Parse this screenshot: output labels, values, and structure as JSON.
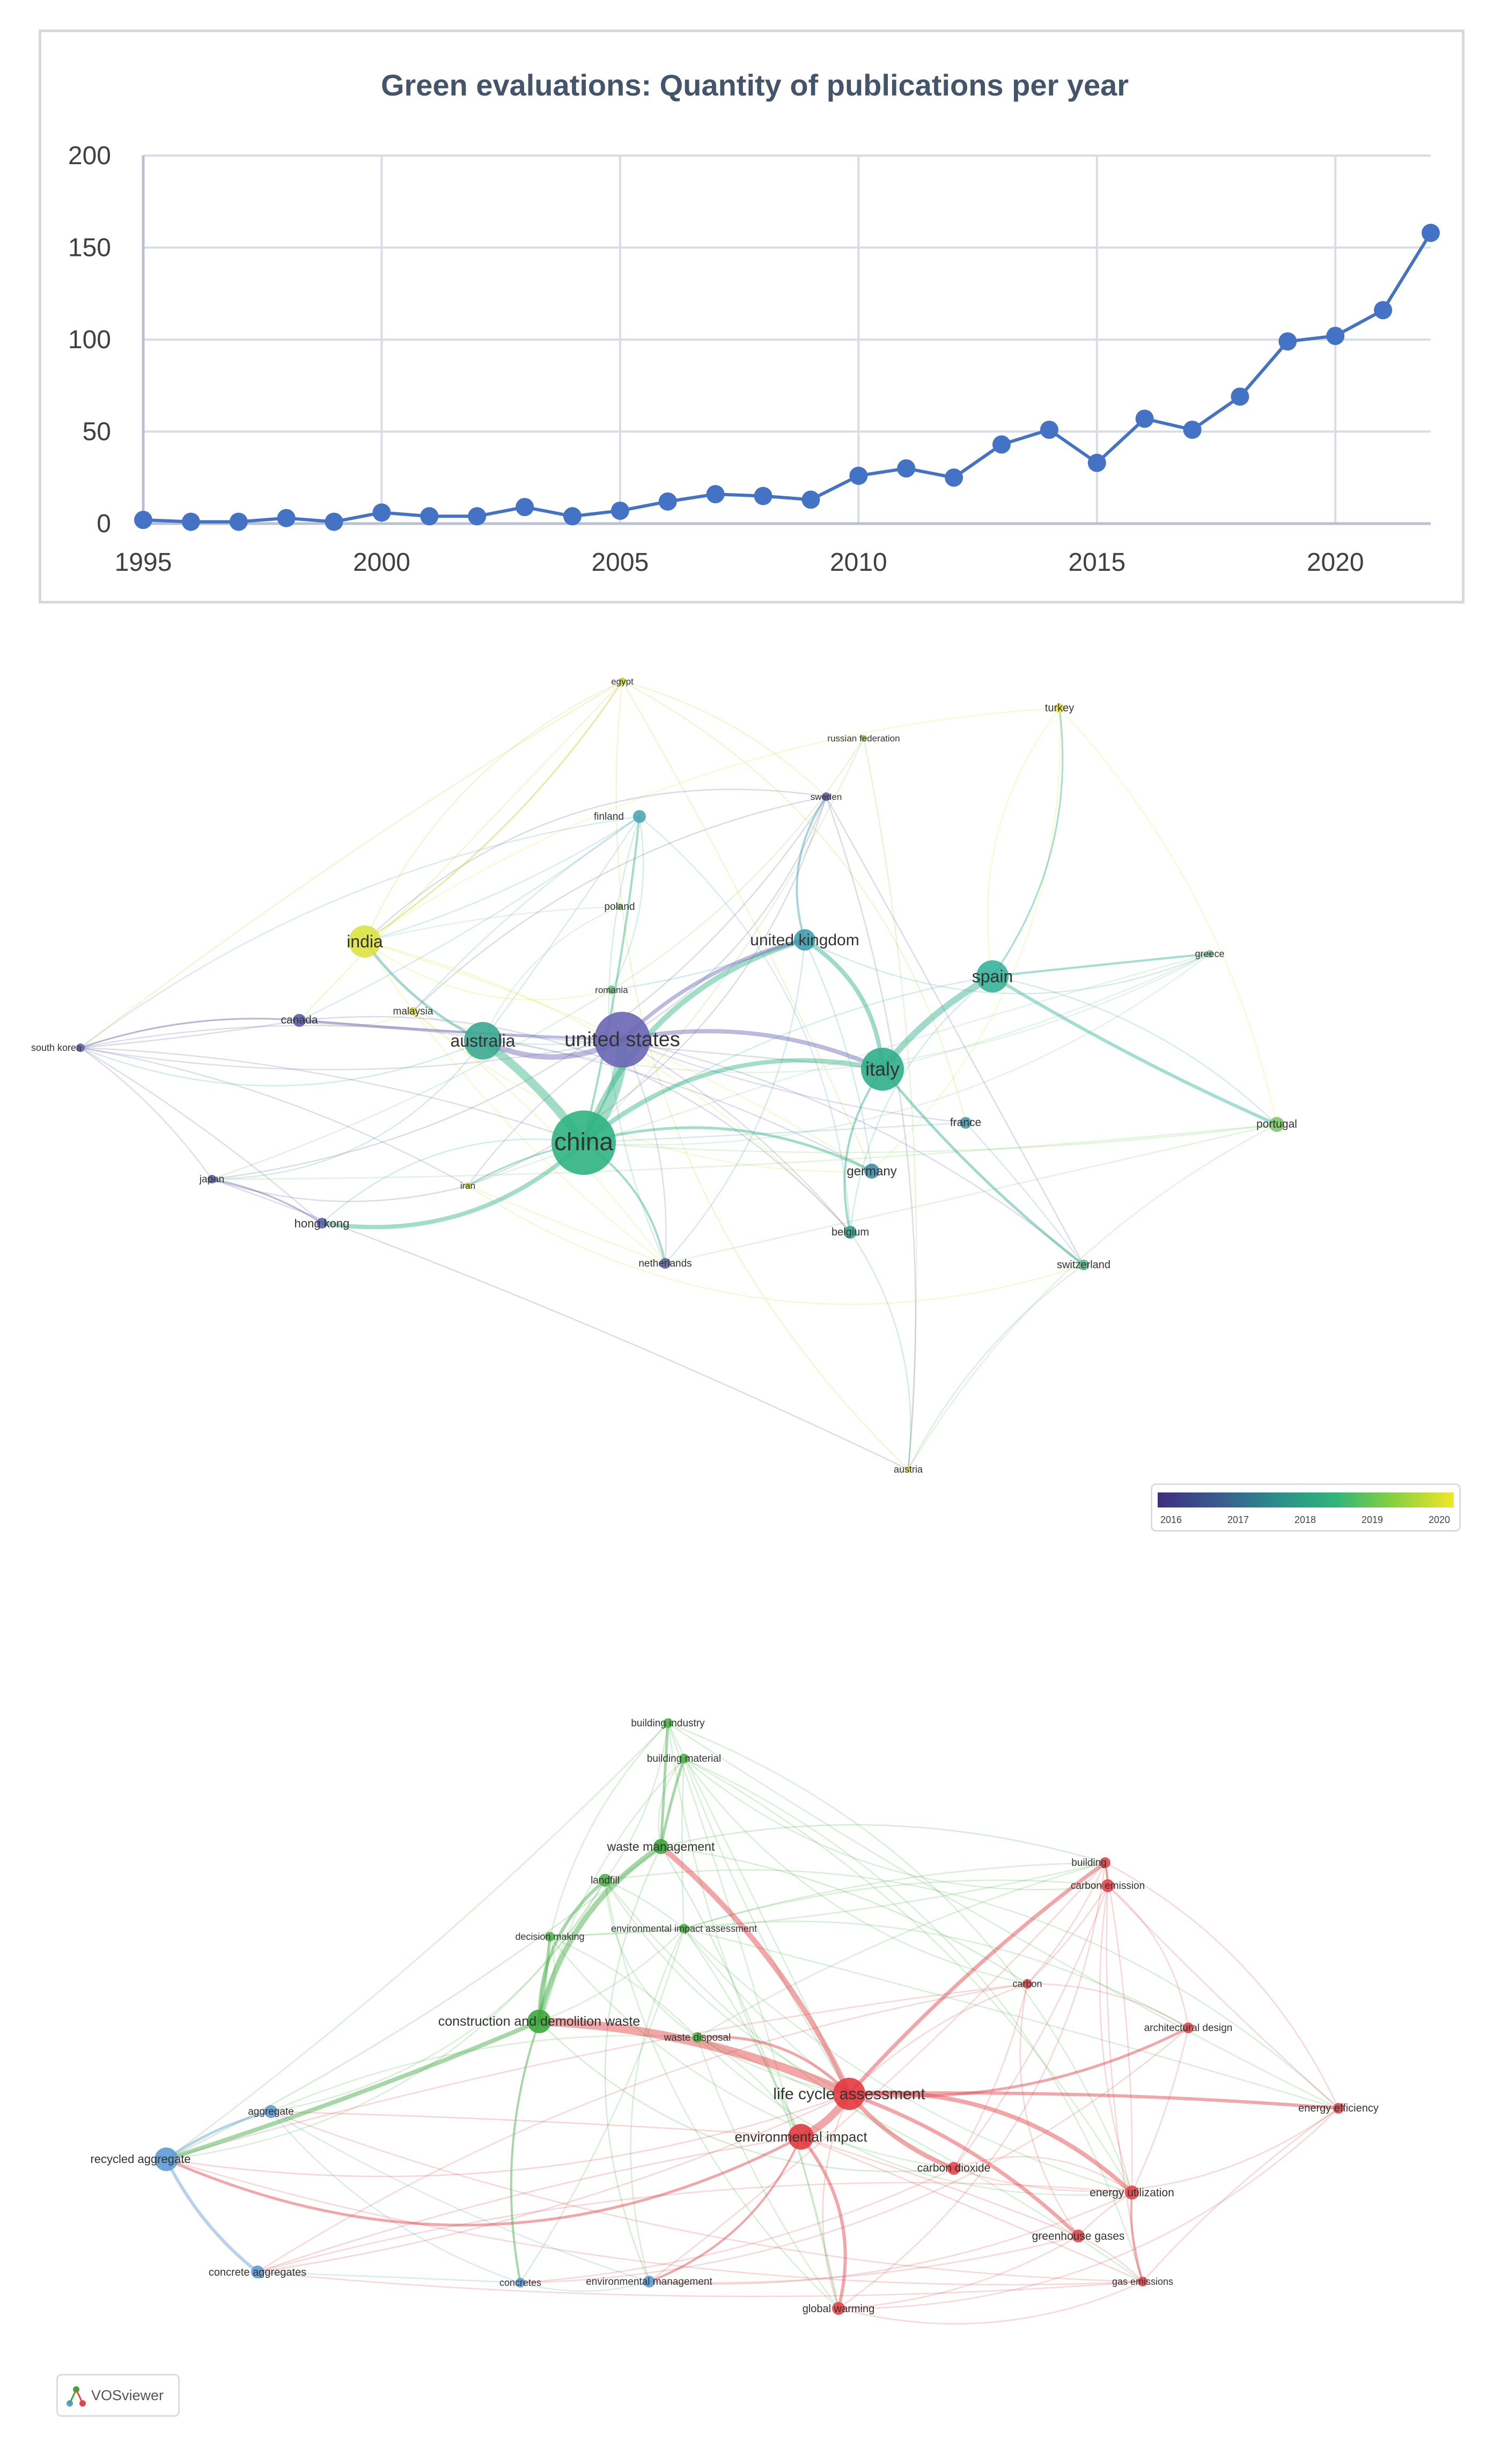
{
  "chart_data": [
    {
      "type": "line",
      "title": "Green evaluations: Quantity of publications per year",
      "xlabel": "",
      "ylabel": "",
      "x": [
        1995,
        1996,
        1997,
        1998,
        1999,
        2000,
        2001,
        2002,
        2003,
        2004,
        2005,
        2006,
        2007,
        2008,
        2009,
        2010,
        2011,
        2012,
        2013,
        2014,
        2015,
        2016,
        2017,
        2018,
        2019,
        2020,
        2021,
        2022
      ],
      "values": [
        2,
        1,
        1,
        3,
        1,
        6,
        4,
        4,
        9,
        4,
        7,
        12,
        16,
        15,
        13,
        26,
        30,
        25,
        43,
        51,
        33,
        57,
        51,
        69,
        99,
        102,
        116,
        158
      ],
      "xticks": [
        "1995",
        "2000",
        "2005",
        "2010",
        "2015",
        "2020"
      ],
      "yticks": [
        "0",
        "50",
        "100",
        "150",
        "200"
      ],
      "xlim": [
        1995,
        2022
      ],
      "ylim": [
        0,
        200
      ],
      "grid": true,
      "color": "#4472c4"
    },
    {
      "type": "network",
      "legend_ticks": [
        "2016",
        "2017",
        "2018",
        "2019",
        "2020"
      ],
      "nodes": [
        {
          "label": "egypt",
          "color": "#c9d23a"
        },
        {
          "label": "turkey",
          "color": "#e9e34a"
        },
        {
          "label": "russian federation",
          "color": "#9ccf5a"
        },
        {
          "label": "sweden",
          "color": "#5b5aa0"
        },
        {
          "label": "finland",
          "color": "#4ea7b3"
        },
        {
          "label": "poland",
          "color": "#8fc67a"
        },
        {
          "label": "india",
          "color": "#dbe242"
        },
        {
          "label": "united kingdom",
          "color": "#3e9fae"
        },
        {
          "label": "greece",
          "color": "#7fc79a"
        },
        {
          "label": "spain",
          "color": "#36b39a"
        },
        {
          "label": "romania",
          "color": "#6fc07e"
        },
        {
          "label": "malaysia",
          "color": "#d8df46"
        },
        {
          "label": "canada",
          "color": "#5c5ca5"
        },
        {
          "label": "australia",
          "color": "#3aa891"
        },
        {
          "label": "united states",
          "color": "#6a66b5"
        },
        {
          "label": "south korea",
          "color": "#6a62a8"
        },
        {
          "label": "italy",
          "color": "#2fae8a"
        },
        {
          "label": "france",
          "color": "#4b9cb0"
        },
        {
          "label": "portugal",
          "color": "#7cc86a"
        },
        {
          "label": "china",
          "color": "#30b383"
        },
        {
          "label": "germany",
          "color": "#3f8ca9"
        },
        {
          "label": "japan",
          "color": "#5a5ea3"
        },
        {
          "label": "iran",
          "color": "#d8d949"
        },
        {
          "label": "hong kong",
          "color": "#5a64a8"
        },
        {
          "label": "netherlands",
          "color": "#6363a8"
        },
        {
          "label": "belgium",
          "color": "#3aa48f"
        },
        {
          "label": "switzerland",
          "color": "#5fb88c"
        },
        {
          "label": "austria",
          "color": "#e4e34f"
        }
      ]
    },
    {
      "type": "network",
      "nodes": [
        {
          "label": "building industry",
          "color": "#4fb548"
        },
        {
          "label": "building material",
          "color": "#4fb548"
        },
        {
          "label": "waste management",
          "color": "#3aa83b"
        },
        {
          "label": "landfill",
          "color": "#4fb548"
        },
        {
          "label": "environmental impact assessment",
          "color": "#4fb548"
        },
        {
          "label": "decision making",
          "color": "#4fb548"
        },
        {
          "label": "construction and demolition waste",
          "color": "#3aa83b"
        },
        {
          "label": "waste disposal",
          "color": "#4fb548"
        },
        {
          "label": "building",
          "color": "#e0474c"
        },
        {
          "label": "carbon emission",
          "color": "#e0474c"
        },
        {
          "label": "carbon",
          "color": "#e0474c"
        },
        {
          "label": "architectural design",
          "color": "#e0474c"
        },
        {
          "label": "life cycle assessment",
          "color": "#e23a3f"
        },
        {
          "label": "environmental impact",
          "color": "#e23a3f"
        },
        {
          "label": "energy efficiency",
          "color": "#e0474c"
        },
        {
          "label": "carbon dioxide",
          "color": "#e0474c"
        },
        {
          "label": "energy utilization",
          "color": "#e0474c"
        },
        {
          "label": "greenhouse gases",
          "color": "#e0474c"
        },
        {
          "label": "gas emissions",
          "color": "#e0474c"
        },
        {
          "label": "global warming",
          "color": "#e0474c"
        },
        {
          "label": "aggregate",
          "color": "#5d9bd5"
        },
        {
          "label": "recycled aggregate",
          "color": "#5d9bd5"
        },
        {
          "label": "concrete aggregates",
          "color": "#5d9bd5"
        },
        {
          "label": "concretes",
          "color": "#5d9bd5"
        },
        {
          "label": "environmental management",
          "color": "#5d9bd5"
        }
      ]
    }
  ],
  "branding": {
    "label": "VOSviewer"
  }
}
